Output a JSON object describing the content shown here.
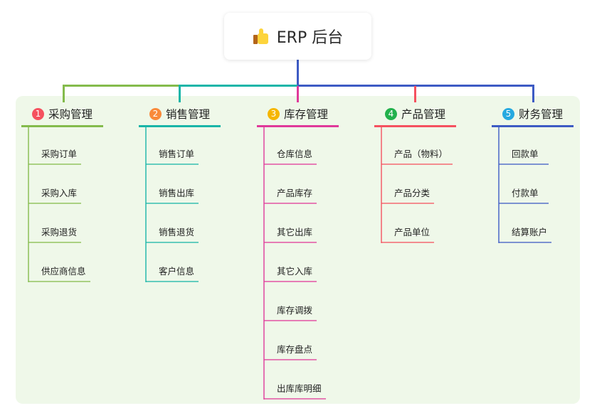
{
  "root": {
    "title": "ERP 后台",
    "icon": "thumbs-up-icon"
  },
  "branches": [
    {
      "number": "1",
      "label": "采购管理",
      "color": "#84bb4c",
      "badge_color": "#f5515f",
      "items": [
        "采购订单",
        "采购入库",
        "采购退货",
        "供应商信息"
      ]
    },
    {
      "number": "2",
      "label": "销售管理",
      "color": "#19b5a8",
      "badge_color": "#f98a3a",
      "items": [
        "销售订单",
        "销售出库",
        "销售退货",
        "客户信息"
      ]
    },
    {
      "number": "3",
      "label": "库存管理",
      "color": "#e0399a",
      "badge_color": "#f5b600",
      "items": [
        "仓库信息",
        "产品库存",
        "其它出库",
        "其它入库",
        "库存调拨",
        "库存盘点",
        "出库库明细"
      ]
    },
    {
      "number": "4",
      "label": "产品管理",
      "color": "#f5515f",
      "badge_color": "#22b14c",
      "items": [
        "产品（物料）",
        "产品分类",
        "产品单位"
      ]
    },
    {
      "number": "5",
      "label": "财务管理",
      "color": "#3d5bc4",
      "badge_color": "#26a9e0",
      "items": [
        "回款单",
        "付款单",
        "结算账户"
      ]
    }
  ]
}
